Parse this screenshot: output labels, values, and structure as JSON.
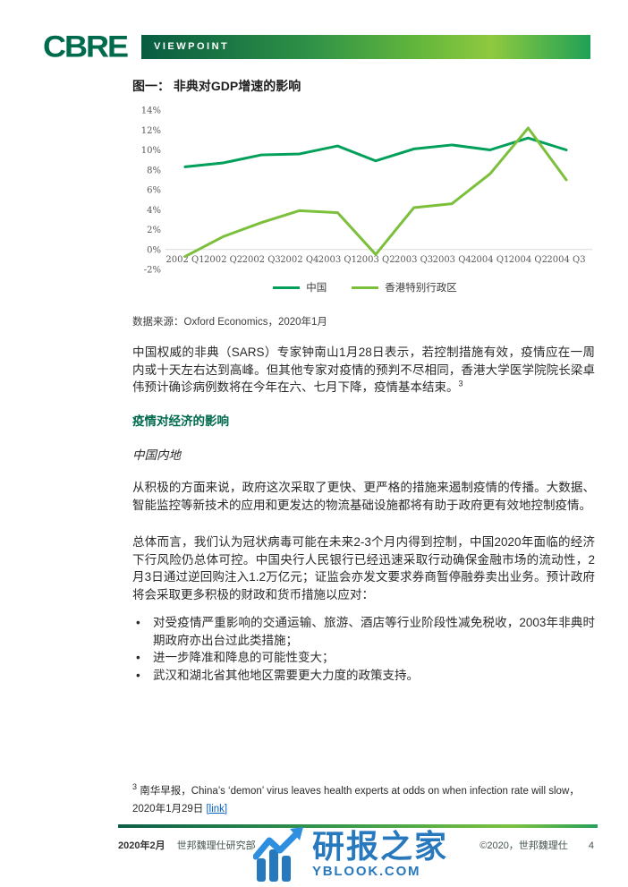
{
  "header": {
    "brand": "CBRE",
    "banner": "VIEWPOINT"
  },
  "figure": {
    "title": "图一：  非典对GDP增速的影响",
    "source": "数据来源：Oxford Economics，2020年1月"
  },
  "chart_data": {
    "type": "line",
    "title": "图一： 非典对GDP增速的影响",
    "categories": [
      "2002 Q1",
      "2002 Q2",
      "2002 Q3",
      "2002 Q4",
      "2003 Q1",
      "2003 Q2",
      "2003 Q3",
      "2003 Q4",
      "2004 Q1",
      "2004 Q2",
      "2004 Q3"
    ],
    "series": [
      {
        "name": "中国",
        "color": "#00A05A",
        "values": [
          8.3,
          8.7,
          9.5,
          9.6,
          10.4,
          8.9,
          10.1,
          10.5,
          10.0,
          11.2,
          10.0
        ]
      },
      {
        "name": "香港特别行政区",
        "color": "#7CBF3B",
        "values": [
          -0.7,
          1.3,
          2.7,
          3.9,
          3.7,
          -0.5,
          4.2,
          4.6,
          7.6,
          12.2,
          7.0
        ]
      }
    ],
    "xlabel": "",
    "ylabel": "",
    "ylim": [
      -2,
      14
    ],
    "ytick_step": 2,
    "ytick_suffix": "%",
    "grid": "zero-baseline-only",
    "legend_position": "bottom"
  },
  "body": {
    "p1": "中国权威的非典（SARS）专家钟南山1月28日表示，若控制措施有效，疫情应在一周内或十天左右达到高峰。但其他专家对疫情的预判不尽相同，香港大学医学院院长梁卓伟预计确诊病例数将在今年在六、七月下降，疫情基本结束。",
    "p1_footnote_ref": "3",
    "h1": "疫情对经济的影响",
    "h2": "中国内地",
    "p2": "从积极的方面来说，政府这次采取了更快、更严格的措施来遏制疫情的传播。大数据、智能监控等新技术的应用和更发达的物流基础设施都将有助于政府更有效地控制疫情。",
    "p3": "总体而言，我们认为冠状病毒可能在未来2-3个月内得到控制，中国2020年面临的经济下行风险仍总体可控。中国央行人民银行已经迅速采取行动确保金融市场的流动性，2月3日通过逆回购注入1.2万亿元；证监会亦发文要求券商暂停融券卖出业务。预计政府将会采取更多积极的财政和货币措施以应对：",
    "bullets": [
      "对受疫情严重影响的交通运输、旅游、酒店等行业阶段性减免税收，2003年非典时期政府亦出台过此类措施；",
      "进一步降准和降息的可能性变大；",
      "武汉和湖北省其他地区需要更大力度的政策支持。"
    ]
  },
  "footnote": {
    "marker": "3",
    "text": "南华早报，China’s ‘demon’ virus leaves health experts at odds on when infection rate will slow，2020年1月29日 ",
    "link_label": "[link]"
  },
  "footer": {
    "date": "2020年2月",
    "dept": "世邦魏理仕研究部",
    "copyright": "©2020，世邦魏理仕",
    "page_number": "4"
  },
  "watermark": {
    "name": "研报之家",
    "site": "YBLOOK.COM"
  },
  "colors": {
    "brand_green": "#006A4D",
    "china_line": "#00A05A",
    "hk_line": "#7CBF3B",
    "link_blue": "#0563C1",
    "watermark_blue": "#2878BE"
  }
}
